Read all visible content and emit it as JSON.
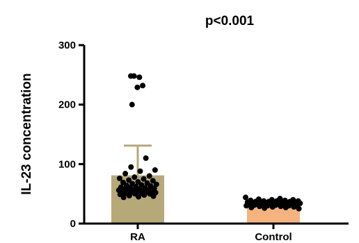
{
  "chart_data": {
    "type": "bar",
    "title": "",
    "annotation": "p<0.001",
    "xlabel": "",
    "ylabel": "IL-23 concentration",
    "ylim": [
      0,
      300
    ],
    "yticks": [
      0,
      100,
      200,
      300
    ],
    "grid": false,
    "categories": [
      "RA",
      "Control"
    ],
    "values": [
      81,
      33
    ],
    "error_upper": [
      131,
      null
    ],
    "bar_colors": [
      "#b5a978",
      "#f5b47e"
    ],
    "points": [
      [
        248,
        246,
        248,
        232,
        229,
        200,
        110,
        95,
        90,
        88,
        84,
        80,
        78,
        76,
        75,
        73,
        72,
        70,
        69,
        68,
        67,
        66,
        65,
        64,
        63,
        62,
        61,
        60,
        60,
        59,
        58,
        58,
        57,
        56,
        56,
        55,
        55,
        54,
        54,
        53,
        53,
        52,
        52,
        51,
        51,
        50,
        50,
        49,
        48,
        47,
        46,
        45,
        44
      ],
      [
        44,
        42,
        41,
        40,
        40,
        39,
        39,
        38,
        38,
        38,
        37,
        37,
        37,
        36,
        36,
        36,
        35,
        35,
        35,
        34,
        34,
        34,
        33,
        33,
        33,
        33,
        32,
        32,
        32,
        31,
        31,
        31,
        30,
        30,
        30,
        29,
        29,
        28,
        28,
        27,
        27,
        26,
        25
      ]
    ]
  }
}
